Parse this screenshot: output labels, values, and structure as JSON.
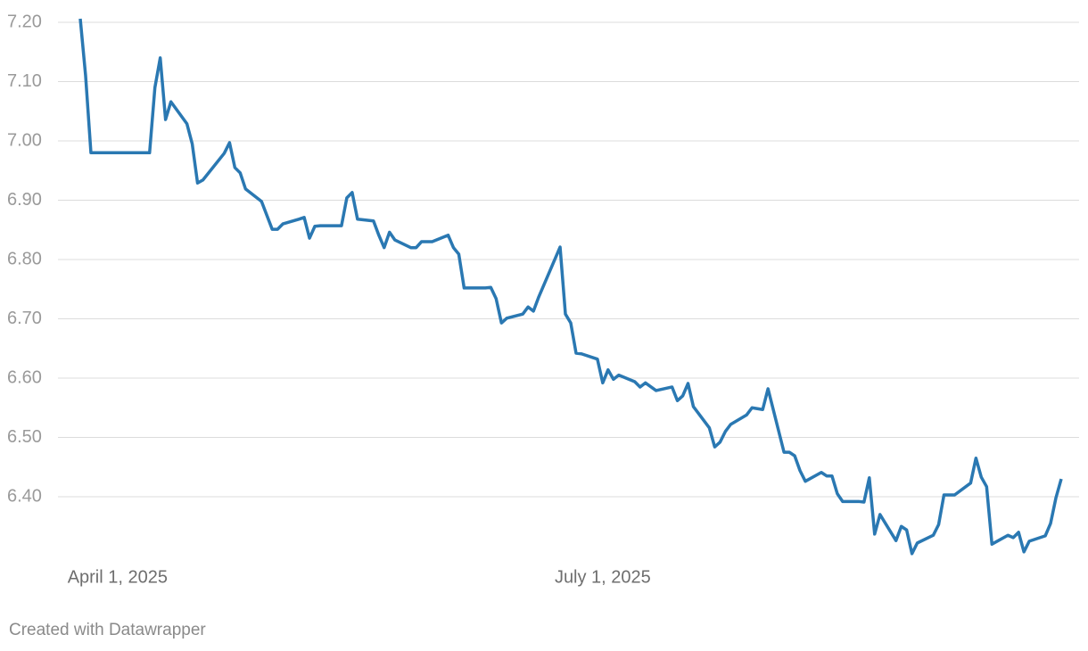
{
  "chart_data": {
    "type": "line",
    "footer": "Created with Datawrapper",
    "x": [
      "2025-03-25",
      "2025-03-26",
      "2025-03-27",
      "2025-04-07",
      "2025-04-08",
      "2025-04-09",
      "2025-04-10",
      "2025-04-11",
      "2025-04-14",
      "2025-04-15",
      "2025-04-16",
      "2025-04-17",
      "2025-04-21",
      "2025-04-22",
      "2025-04-23",
      "2025-04-24",
      "2025-04-25",
      "2025-04-28",
      "2025-04-30",
      "2025-05-01",
      "2025-05-02",
      "2025-05-05",
      "2025-05-06",
      "2025-05-07",
      "2025-05-08",
      "2025-05-09",
      "2025-05-13",
      "2025-05-14",
      "2025-05-15",
      "2025-05-16",
      "2025-05-19",
      "2025-05-20",
      "2025-05-21",
      "2025-05-22",
      "2025-05-23",
      "2025-05-26",
      "2025-05-27",
      "2025-05-28",
      "2025-05-30",
      "2025-06-02",
      "2025-06-03",
      "2025-06-04",
      "2025-06-05",
      "2025-06-09",
      "2025-06-10",
      "2025-06-11",
      "2025-06-12",
      "2025-06-13",
      "2025-06-16",
      "2025-06-17",
      "2025-06-18",
      "2025-06-19",
      "2025-06-23",
      "2025-06-24",
      "2025-06-25",
      "2025-06-26",
      "2025-06-27",
      "2025-06-30",
      "2025-07-01",
      "2025-07-02",
      "2025-07-03",
      "2025-07-04",
      "2025-07-07",
      "2025-07-08",
      "2025-07-09",
      "2025-07-11",
      "2025-07-14",
      "2025-07-15",
      "2025-07-16",
      "2025-07-17",
      "2025-07-18",
      "2025-07-21",
      "2025-07-22",
      "2025-07-23",
      "2025-07-24",
      "2025-07-25",
      "2025-07-28",
      "2025-07-29",
      "2025-07-31",
      "2025-08-01",
      "2025-08-04",
      "2025-08-05",
      "2025-08-06",
      "2025-08-07",
      "2025-08-08",
      "2025-08-11",
      "2025-08-12",
      "2025-08-13",
      "2025-08-14",
      "2025-08-15",
      "2025-08-18",
      "2025-08-19",
      "2025-08-20",
      "2025-08-21",
      "2025-08-22",
      "2025-08-25",
      "2025-08-26",
      "2025-08-27",
      "2025-08-28",
      "2025-08-29",
      "2025-09-01",
      "2025-09-02",
      "2025-09-03",
      "2025-09-05",
      "2025-09-08",
      "2025-09-09",
      "2025-09-10",
      "2025-09-11",
      "2025-09-12",
      "2025-09-15",
      "2025-09-16",
      "2025-09-17",
      "2025-09-18",
      "2025-09-19",
      "2025-09-22",
      "2025-09-23",
      "2025-09-24",
      "2025-09-25"
    ],
    "series": [
      {
        "color": "#2a78b2",
        "values": [
          7.206,
          7.11,
          6.98,
          6.98,
          7.09,
          7.14,
          7.036,
          7.066,
          7.029,
          6.995,
          6.929,
          6.934,
          6.979,
          6.997,
          6.955,
          6.946,
          6.919,
          6.898,
          6.851,
          6.851,
          6.86,
          6.868,
          6.871,
          6.836,
          6.856,
          6.857,
          6.857,
          6.904,
          6.913,
          6.868,
          6.865,
          6.841,
          6.82,
          6.846,
          6.833,
          6.82,
          6.82,
          6.83,
          6.83,
          6.841,
          6.82,
          6.809,
          6.752,
          6.752,
          6.753,
          6.734,
          6.693,
          6.701,
          6.708,
          6.72,
          6.713,
          6.737,
          6.821,
          6.708,
          6.693,
          6.642,
          6.641,
          6.632,
          6.592,
          6.614,
          6.598,
          6.605,
          6.594,
          6.585,
          6.592,
          6.579,
          6.585,
          6.562,
          6.57,
          6.591,
          6.552,
          6.516,
          6.484,
          6.492,
          6.51,
          6.522,
          6.538,
          6.55,
          6.547,
          6.582,
          6.475,
          6.475,
          6.469,
          6.444,
          6.426,
          6.441,
          6.435,
          6.435,
          6.405,
          6.392,
          6.392,
          6.391,
          6.432,
          6.337,
          6.37,
          6.326,
          6.35,
          6.344,
          6.304,
          6.322,
          6.335,
          6.353,
          6.403,
          6.403,
          6.423,
          6.465,
          6.433,
          6.417,
          6.32,
          6.335,
          6.331,
          6.34,
          6.307,
          6.325,
          6.334,
          6.355,
          6.398,
          6.43
        ]
      }
    ],
    "xlim": [
      "2025-03-25",
      "2025-09-25"
    ],
    "xticks": [
      {
        "value": "2025-04-01",
        "label": "April 1, 2025"
      },
      {
        "value": "2025-07-01",
        "label": "July 1, 2025"
      }
    ],
    "ylim": [
      6.3,
      7.2
    ],
    "yticks": [
      {
        "value": 6.4,
        "label": "6.40"
      },
      {
        "value": 6.5,
        "label": "6.50"
      },
      {
        "value": 6.6,
        "label": "6.60"
      },
      {
        "value": 6.7,
        "label": "6.70"
      },
      {
        "value": 6.8,
        "label": "6.80"
      },
      {
        "value": 6.9,
        "label": "6.90"
      },
      {
        "value": 7.0,
        "label": "7.00"
      },
      {
        "value": 7.1,
        "label": "7.10"
      },
      {
        "value": 7.2,
        "label": "7.20"
      }
    ],
    "grid": true
  }
}
